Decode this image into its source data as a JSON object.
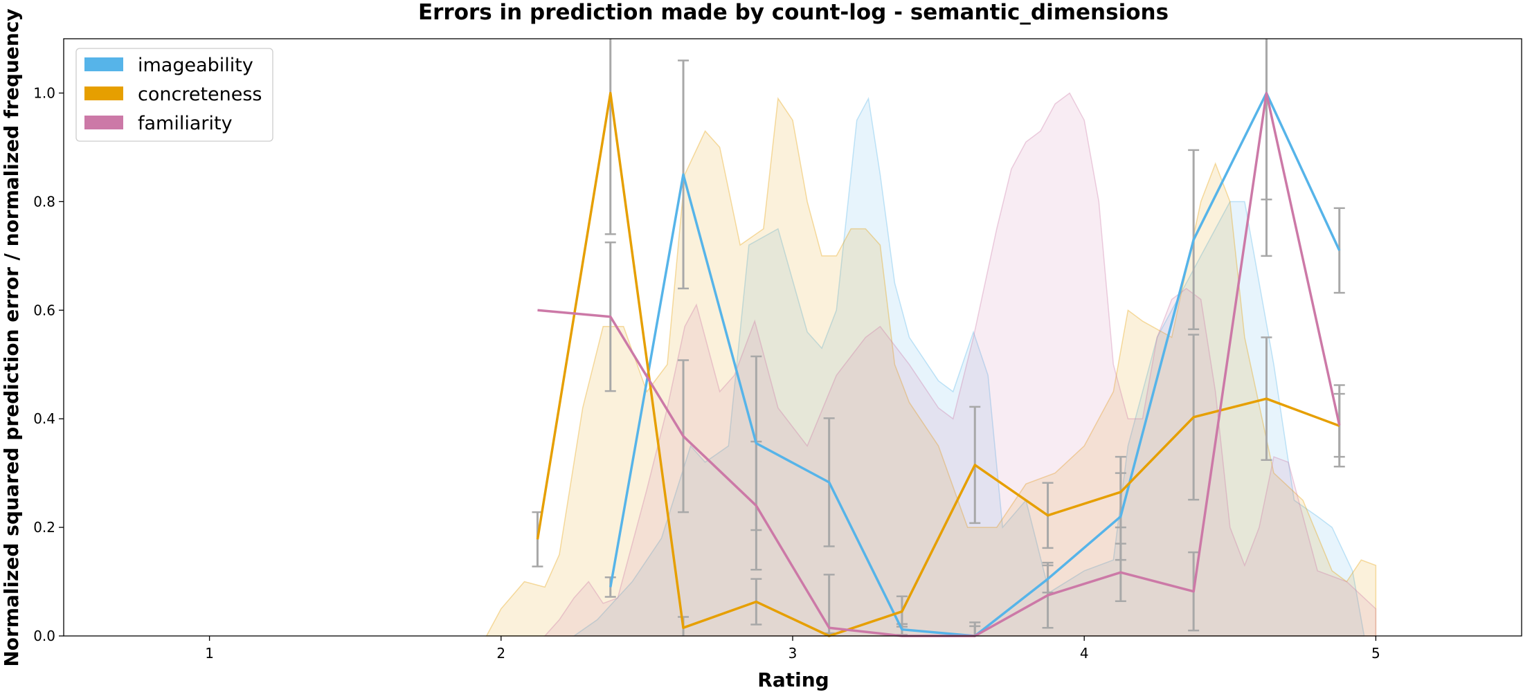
{
  "chart_data": {
    "type": "line",
    "title": "Errors in prediction made by count-log - semantic_dimensions",
    "xlabel": "Rating",
    "ylabel": "Normalized squared prediction error / normalized frequency",
    "xlim": [
      0.5,
      5.5
    ],
    "ylim": [
      0,
      1.1
    ],
    "x_ticks": [
      1,
      2,
      3,
      4,
      5
    ],
    "y_ticks": [
      0.0,
      0.2,
      0.4,
      0.6,
      0.8,
      1.0
    ],
    "x_tick_labels": [
      "1",
      "2",
      "3",
      "4",
      "5"
    ],
    "y_tick_labels": [
      "0.0",
      "0.2",
      "0.4",
      "0.6",
      "0.8",
      "1.0"
    ],
    "grid": false,
    "legend_position": "top-left",
    "errorbar_color": "#a8a8a8",
    "series": [
      {
        "name": "imageability",
        "color": "#56b4e9",
        "x": [
          2.375,
          2.625,
          2.875,
          3.125,
          3.375,
          3.625,
          3.875,
          4.125,
          4.375,
          4.625,
          4.875
        ],
        "y": [
          0.09,
          0.85,
          0.355,
          0.283,
          0.012,
          0.0,
          0.105,
          0.22,
          0.73,
          1.0,
          0.71
        ],
        "err": [
          0.018,
          0.21,
          0.16,
          0.118,
          0.01,
          0.018,
          0.025,
          0.08,
          0.165,
          0.3,
          0.078
        ],
        "frequency": [
          [
            2.25,
            0.0
          ],
          [
            2.33,
            0.03
          ],
          [
            2.45,
            0.1
          ],
          [
            2.55,
            0.18
          ],
          [
            2.65,
            0.35
          ],
          [
            2.7,
            0.32
          ],
          [
            2.78,
            0.35
          ],
          [
            2.85,
            0.72
          ],
          [
            2.95,
            0.75
          ],
          [
            3.05,
            0.56
          ],
          [
            3.1,
            0.53
          ],
          [
            3.15,
            0.6
          ],
          [
            3.22,
            0.95
          ],
          [
            3.26,
            0.99
          ],
          [
            3.3,
            0.85
          ],
          [
            3.35,
            0.65
          ],
          [
            3.4,
            0.55
          ],
          [
            3.5,
            0.47
          ],
          [
            3.55,
            0.45
          ],
          [
            3.62,
            0.56
          ],
          [
            3.67,
            0.48
          ],
          [
            3.72,
            0.2
          ],
          [
            3.8,
            0.25
          ],
          [
            3.88,
            0.08
          ],
          [
            4.0,
            0.12
          ],
          [
            4.1,
            0.14
          ],
          [
            4.15,
            0.35
          ],
          [
            4.25,
            0.55
          ],
          [
            4.35,
            0.65
          ],
          [
            4.45,
            0.75
          ],
          [
            4.5,
            0.8
          ],
          [
            4.55,
            0.8
          ],
          [
            4.65,
            0.5
          ],
          [
            4.72,
            0.25
          ],
          [
            4.8,
            0.22
          ],
          [
            4.85,
            0.2
          ],
          [
            4.92,
            0.12
          ],
          [
            4.96,
            0.0
          ]
        ]
      },
      {
        "name": "concreteness",
        "color": "#e69f00",
        "x": [
          2.125,
          2.375,
          2.625,
          2.875,
          3.125,
          3.375,
          3.625,
          3.875,
          4.125,
          4.375,
          4.625,
          4.875
        ],
        "y": [
          0.178,
          1.0,
          0.015,
          0.063,
          0.0,
          0.045,
          0.315,
          0.222,
          0.265,
          0.403,
          0.437,
          0.387
        ],
        "err": [
          0.05,
          0.26,
          0.02,
          0.042,
          0.005,
          0.028,
          0.107,
          0.06,
          0.065,
          0.152,
          0.113,
          0.075
        ],
        "frequency": [
          [
            1.95,
            0.0
          ],
          [
            2.0,
            0.05
          ],
          [
            2.08,
            0.1
          ],
          [
            2.15,
            0.09
          ],
          [
            2.2,
            0.15
          ],
          [
            2.28,
            0.42
          ],
          [
            2.35,
            0.57
          ],
          [
            2.42,
            0.57
          ],
          [
            2.5,
            0.45
          ],
          [
            2.57,
            0.5
          ],
          [
            2.63,
            0.85
          ],
          [
            2.7,
            0.93
          ],
          [
            2.75,
            0.9
          ],
          [
            2.82,
            0.72
          ],
          [
            2.9,
            0.75
          ],
          [
            2.95,
            0.99
          ],
          [
            3.0,
            0.95
          ],
          [
            3.05,
            0.8
          ],
          [
            3.1,
            0.7
          ],
          [
            3.15,
            0.7
          ],
          [
            3.2,
            0.75
          ],
          [
            3.25,
            0.75
          ],
          [
            3.3,
            0.72
          ],
          [
            3.35,
            0.5
          ],
          [
            3.4,
            0.43
          ],
          [
            3.5,
            0.35
          ],
          [
            3.6,
            0.2
          ],
          [
            3.7,
            0.2
          ],
          [
            3.8,
            0.28
          ],
          [
            3.9,
            0.3
          ],
          [
            4.0,
            0.35
          ],
          [
            4.1,
            0.45
          ],
          [
            4.15,
            0.6
          ],
          [
            4.2,
            0.58
          ],
          [
            4.3,
            0.55
          ],
          [
            4.4,
            0.8
          ],
          [
            4.45,
            0.87
          ],
          [
            4.5,
            0.8
          ],
          [
            4.55,
            0.55
          ],
          [
            4.65,
            0.3
          ],
          [
            4.75,
            0.25
          ],
          [
            4.85,
            0.12
          ],
          [
            4.9,
            0.1
          ],
          [
            4.95,
            0.14
          ],
          [
            5.0,
            0.13
          ]
        ]
      },
      {
        "name": "familiarity",
        "color": "#cc79a7",
        "x": [
          2.125,
          2.375,
          2.625,
          2.875,
          3.125,
          3.375,
          3.625,
          3.875,
          4.125,
          4.375,
          4.625,
          4.875
        ],
        "y": [
          0.6,
          0.588,
          0.368,
          0.24,
          0.015,
          0.0,
          0.0,
          0.075,
          0.117,
          0.082,
          1.0,
          0.388
        ],
        "err": [
          0.0,
          0.137,
          0.14,
          0.118,
          0.098,
          0.0,
          0.025,
          0.06,
          0.053,
          0.072,
          0.196,
          0.058
        ],
        "frequency": [
          [
            2.15,
            0.0
          ],
          [
            2.2,
            0.03
          ],
          [
            2.25,
            0.07
          ],
          [
            2.3,
            0.1
          ],
          [
            2.35,
            0.06
          ],
          [
            2.4,
            0.07
          ],
          [
            2.5,
            0.27
          ],
          [
            2.57,
            0.42
          ],
          [
            2.63,
            0.57
          ],
          [
            2.67,
            0.61
          ],
          [
            2.75,
            0.45
          ],
          [
            2.8,
            0.48
          ],
          [
            2.87,
            0.58
          ],
          [
            2.95,
            0.42
          ],
          [
            3.05,
            0.35
          ],
          [
            3.15,
            0.48
          ],
          [
            3.25,
            0.55
          ],
          [
            3.3,
            0.57
          ],
          [
            3.4,
            0.5
          ],
          [
            3.5,
            0.42
          ],
          [
            3.55,
            0.4
          ],
          [
            3.62,
            0.55
          ],
          [
            3.7,
            0.75
          ],
          [
            3.75,
            0.86
          ],
          [
            3.8,
            0.91
          ],
          [
            3.85,
            0.93
          ],
          [
            3.9,
            0.98
          ],
          [
            3.95,
            1.0
          ],
          [
            4.0,
            0.95
          ],
          [
            4.05,
            0.8
          ],
          [
            4.1,
            0.5
          ],
          [
            4.15,
            0.4
          ],
          [
            4.2,
            0.4
          ],
          [
            4.25,
            0.55
          ],
          [
            4.3,
            0.62
          ],
          [
            4.35,
            0.64
          ],
          [
            4.4,
            0.62
          ],
          [
            4.45,
            0.45
          ],
          [
            4.5,
            0.2
          ],
          [
            4.55,
            0.13
          ],
          [
            4.6,
            0.2
          ],
          [
            4.65,
            0.33
          ],
          [
            4.7,
            0.32
          ],
          [
            4.8,
            0.12
          ],
          [
            4.9,
            0.1
          ],
          [
            5.0,
            0.05
          ]
        ]
      }
    ]
  }
}
